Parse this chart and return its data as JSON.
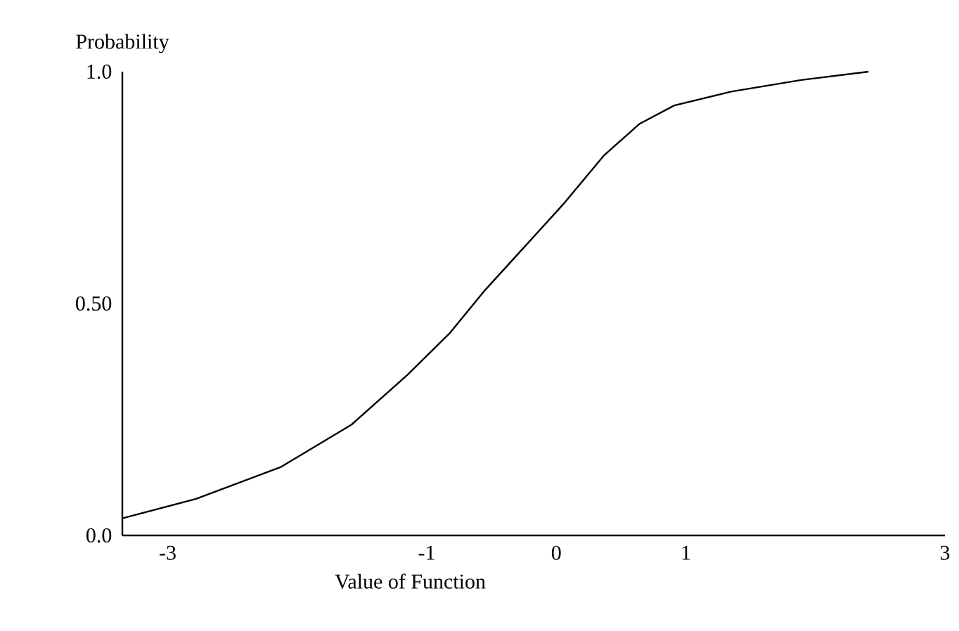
{
  "chart_data": {
    "type": "line",
    "xlabel": "Value of Function",
    "ylabel": "Probability",
    "x": [
      -3.35,
      -2.78,
      -2.13,
      -1.58,
      -1.15,
      -0.82,
      -0.55,
      -0.23,
      0.05,
      0.37,
      0.64,
      0.91,
      1.35,
      1.89,
      2.41
    ],
    "series": [
      {
        "color": "#000000",
        "values": [
          0.037,
          0.079,
          0.147,
          0.239,
          0.346,
          0.437,
          0.529,
          0.627,
          0.713,
          0.82,
          0.887,
          0.927,
          0.957,
          0.982,
          1.0
        ]
      }
    ],
    "xlim": [
      -3.35,
      3.0
    ],
    "xticks": [
      -3,
      -1,
      0,
      1,
      3
    ],
    "ylim": [
      0,
      1.0
    ],
    "yticks": [
      {
        "value": 0,
        "label": "0.0"
      },
      {
        "value": 0.5,
        "label": "0.50"
      },
      {
        "value": 1.0,
        "label": "1.0"
      }
    ],
    "grid": false,
    "marker": "none",
    "line_style": "solid"
  }
}
